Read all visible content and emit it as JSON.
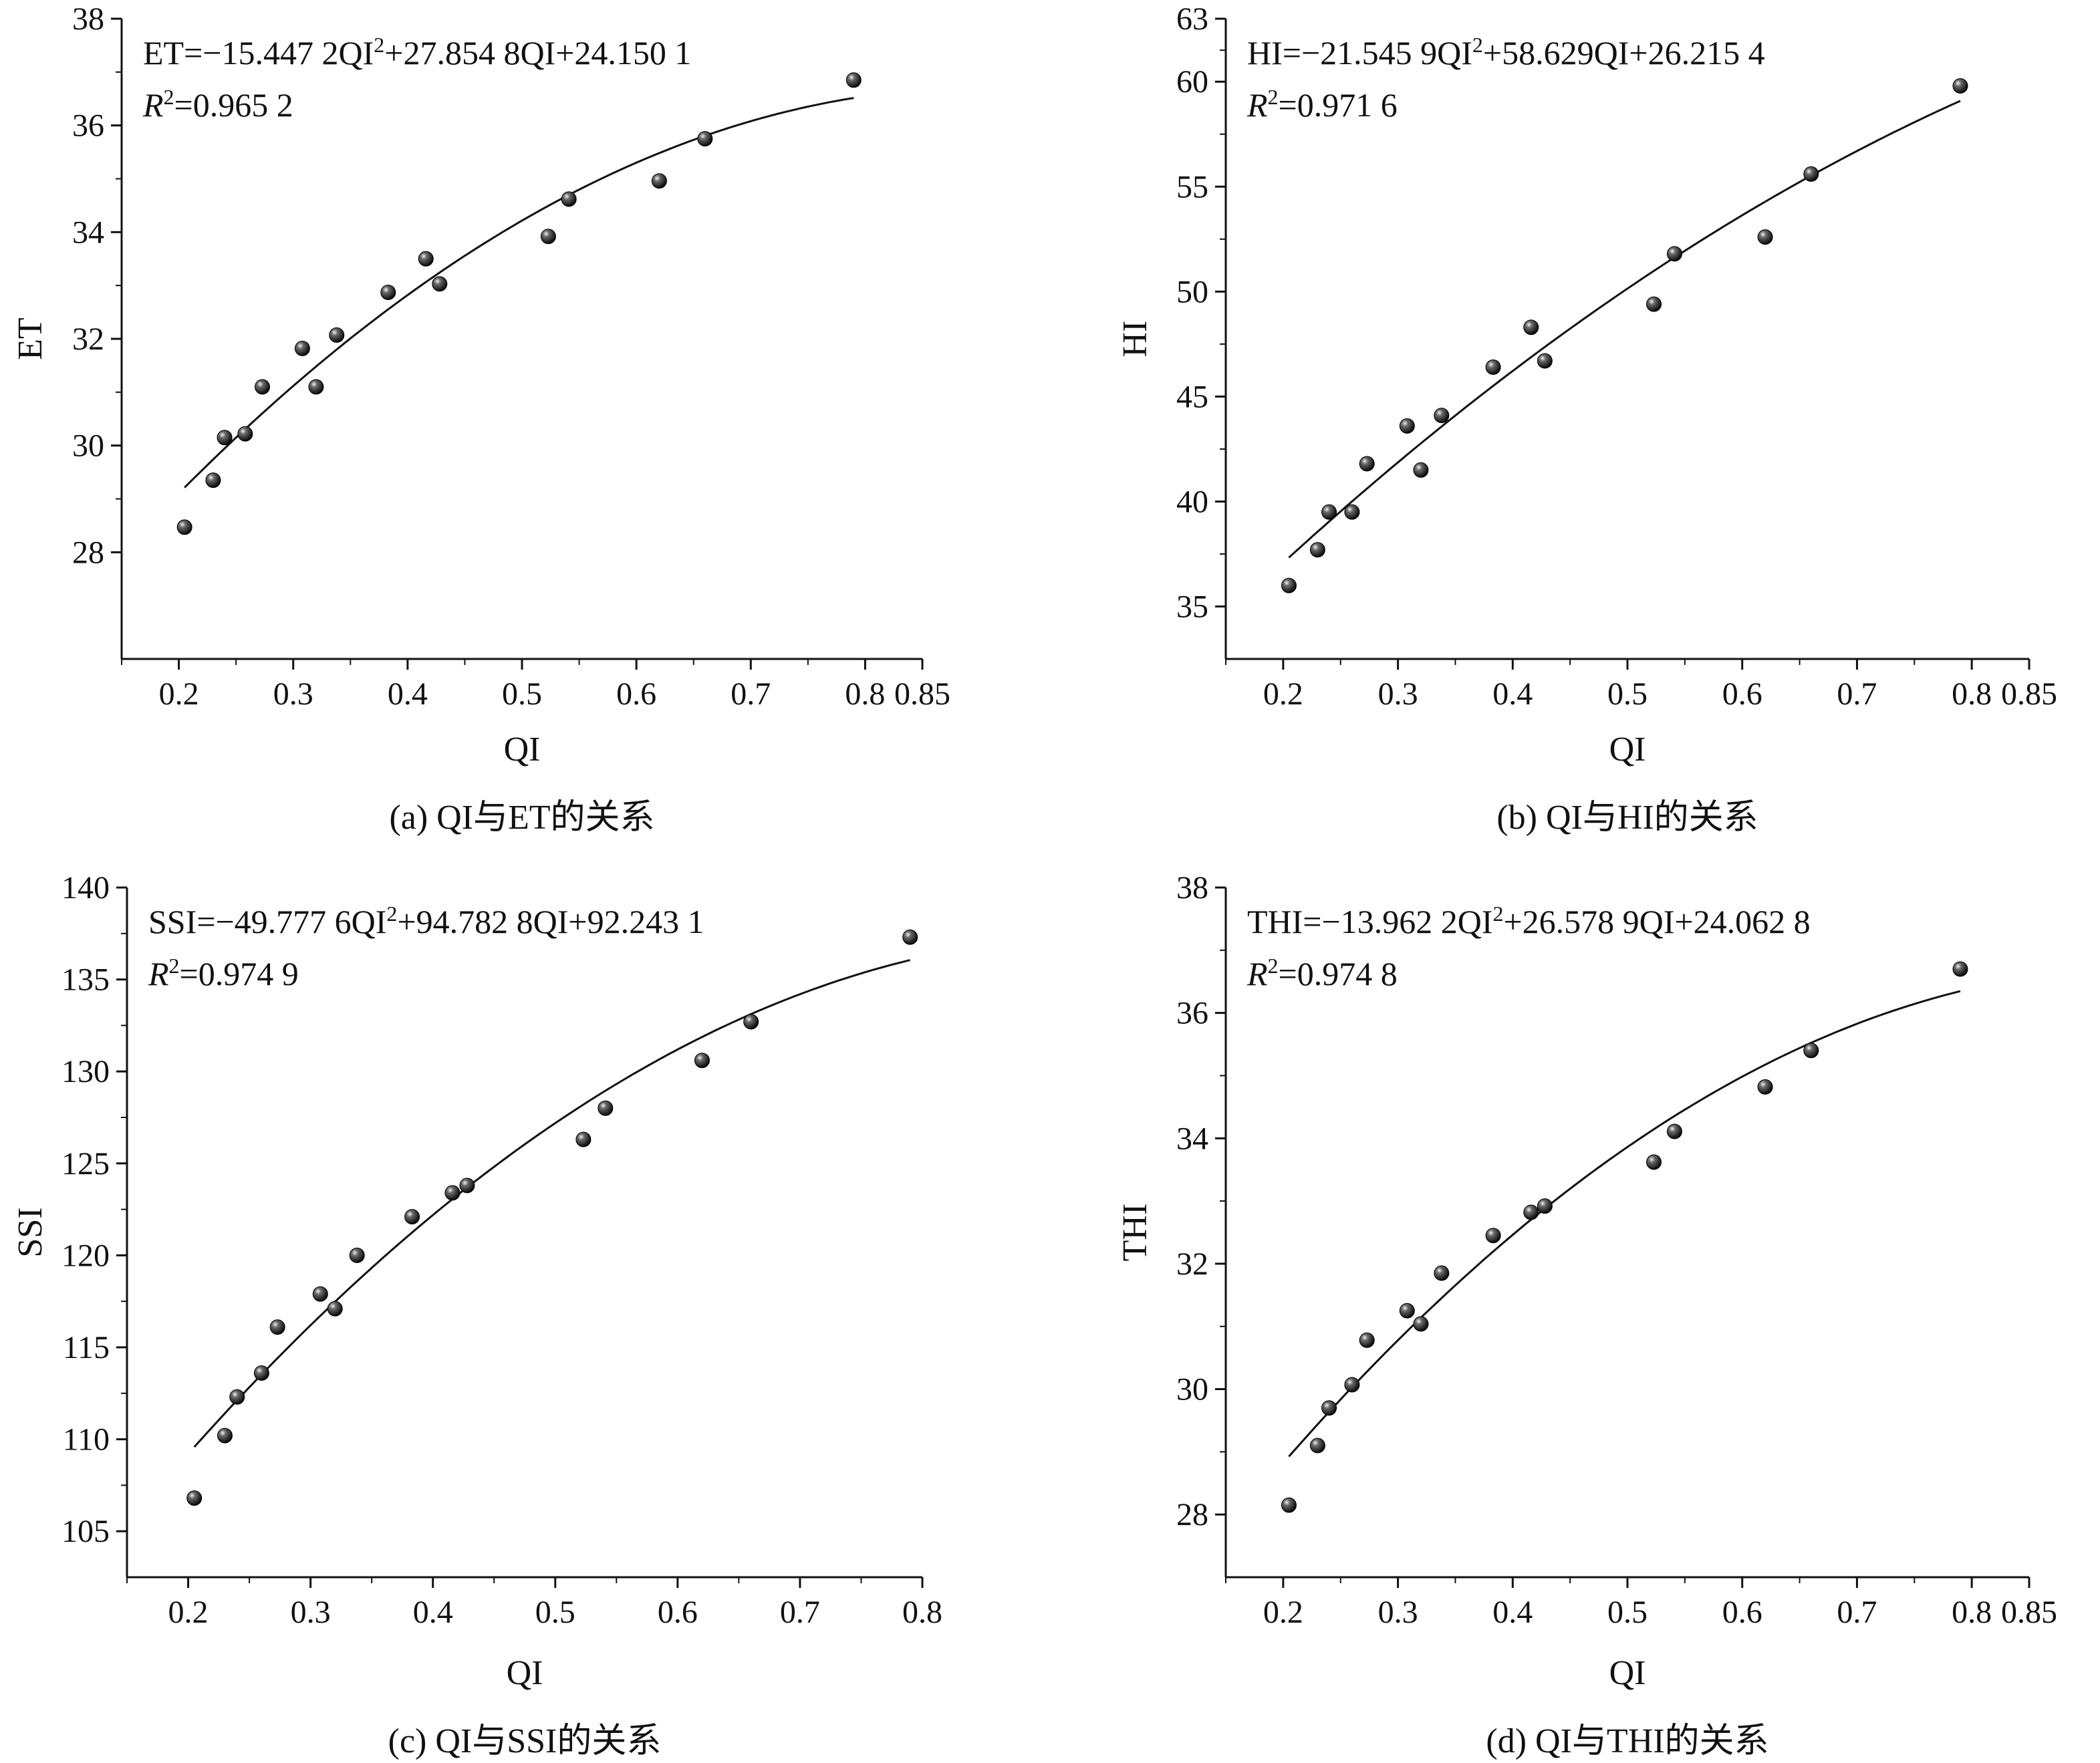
{
  "chart_data": [
    {
      "type": "scatter",
      "panel": "a",
      "caption": "(a) QI与ET的关系",
      "xlabel": "QI",
      "ylabel": "ET",
      "xlim": [
        0.15,
        0.85
      ],
      "ylim": [
        26,
        38
      ],
      "xticks": [
        "0.2",
        "0.3",
        "0.4",
        "0.5",
        "0.6",
        "0.7",
        "0.8",
        "0.85"
      ],
      "xtick_values": [
        0.2,
        0.3,
        0.4,
        0.5,
        0.6,
        0.7,
        0.8,
        0.85
      ],
      "yticks": [
        "28",
        "30",
        "32",
        "34",
        "36",
        "38"
      ],
      "ytick_values": [
        28,
        30,
        32,
        34,
        36,
        38
      ],
      "equation": "ET=−15.447 2QI²+27.854 8QI+24.150 1",
      "r2_label": "R",
      "r2_value": "=0.965 2",
      "fit": {
        "a": -15.4472,
        "b": 27.8548,
        "c": 24.1501,
        "xrange": [
          0.205,
          0.79
        ]
      },
      "points": [
        [
          0.205,
          28.47
        ],
        [
          0.23,
          29.35
        ],
        [
          0.24,
          30.15
        ],
        [
          0.258,
          30.22
        ],
        [
          0.273,
          31.1
        ],
        [
          0.308,
          31.82
        ],
        [
          0.32,
          31.1
        ],
        [
          0.338,
          32.07
        ],
        [
          0.383,
          32.87
        ],
        [
          0.416,
          33.5
        ],
        [
          0.428,
          33.03
        ],
        [
          0.523,
          33.92
        ],
        [
          0.541,
          34.62
        ],
        [
          0.62,
          34.96
        ],
        [
          0.66,
          35.75
        ],
        [
          0.79,
          36.85
        ]
      ]
    },
    {
      "type": "scatter",
      "panel": "b",
      "caption": "(b) QI与HI的关系",
      "xlabel": "QI",
      "ylabel": "HI",
      "xlim": [
        0.15,
        0.85
      ],
      "ylim": [
        32.5,
        63
      ],
      "xticks": [
        "0.2",
        "0.3",
        "0.4",
        "0.5",
        "0.6",
        "0.7",
        "0.8",
        "0.85"
      ],
      "xtick_values": [
        0.2,
        0.3,
        0.4,
        0.5,
        0.6,
        0.7,
        0.8,
        0.85
      ],
      "yticks": [
        "35",
        "40",
        "45",
        "50",
        "55",
        "60",
        "63"
      ],
      "ytick_values": [
        35,
        40,
        45,
        50,
        55,
        60,
        63
      ],
      "equation": "HI=−21.545 9QI²+58.629QI+26.215 4",
      "r2_label": "R",
      "r2_value": "=0.971 6",
      "fit": {
        "a": -21.5459,
        "b": 58.629,
        "c": 26.2154,
        "xrange": [
          0.205,
          0.79
        ]
      },
      "points": [
        [
          0.205,
          36.0
        ],
        [
          0.23,
          37.7
        ],
        [
          0.24,
          39.5
        ],
        [
          0.26,
          39.5
        ],
        [
          0.273,
          41.8
        ],
        [
          0.308,
          43.6
        ],
        [
          0.32,
          41.5
        ],
        [
          0.338,
          44.1
        ],
        [
          0.383,
          46.4
        ],
        [
          0.416,
          48.3
        ],
        [
          0.428,
          46.7
        ],
        [
          0.523,
          49.4
        ],
        [
          0.541,
          51.8
        ],
        [
          0.62,
          52.6
        ],
        [
          0.66,
          55.6
        ],
        [
          0.79,
          59.8
        ]
      ]
    },
    {
      "type": "scatter",
      "panel": "c",
      "caption": "(c) QI与SSI的关系",
      "xlabel": "QI",
      "ylabel": "SSI",
      "xlim": [
        0.15,
        0.8
      ],
      "ylim": [
        102.5,
        140
      ],
      "xticks": [
        "0.2",
        "0.3",
        "0.4",
        "0.5",
        "0.6",
        "0.7",
        "0.8"
      ],
      "xtick_values": [
        0.2,
        0.3,
        0.4,
        0.5,
        0.6,
        0.7,
        0.8
      ],
      "yticks": [
        "105",
        "110",
        "115",
        "120",
        "125",
        "130",
        "135",
        "140"
      ],
      "ytick_values": [
        105,
        110,
        115,
        120,
        125,
        130,
        135,
        140
      ],
      "equation": "SSI=−49.777 6QI²+94.782 8QI+92.243 1",
      "r2_label": "R",
      "r2_value": "=0.974 9",
      "fit": {
        "a": -49.7776,
        "b": 94.7828,
        "c": 92.2431,
        "xrange": [
          0.205,
          0.79
        ]
      },
      "points": [
        [
          0.205,
          106.8
        ],
        [
          0.23,
          110.2
        ],
        [
          0.24,
          112.3
        ],
        [
          0.26,
          113.6
        ],
        [
          0.273,
          116.1
        ],
        [
          0.308,
          117.9
        ],
        [
          0.32,
          117.1
        ],
        [
          0.338,
          120.0
        ],
        [
          0.383,
          122.1
        ],
        [
          0.416,
          123.4
        ],
        [
          0.428,
          123.8
        ],
        [
          0.523,
          126.3
        ],
        [
          0.541,
          128.0
        ],
        [
          0.62,
          130.6
        ],
        [
          0.66,
          132.7
        ],
        [
          0.79,
          137.3
        ]
      ]
    },
    {
      "type": "scatter",
      "panel": "d",
      "caption": "(d) QI与THI的关系",
      "xlabel": "QI",
      "ylabel": "THI",
      "xlim": [
        0.15,
        0.85
      ],
      "ylim": [
        27,
        38
      ],
      "xticks": [
        "0.2",
        "0.3",
        "0.4",
        "0.5",
        "0.6",
        "0.7",
        "0.8",
        "0.85"
      ],
      "xtick_values": [
        0.2,
        0.3,
        0.4,
        0.5,
        0.6,
        0.7,
        0.8,
        0.85
      ],
      "yticks": [
        "28",
        "30",
        "32",
        "34",
        "36",
        "38"
      ],
      "ytick_values": [
        28,
        30,
        32,
        34,
        36,
        38
      ],
      "equation": "THI=−13.962 2QI²+26.578 9QI+24.062 8",
      "r2_label": "R",
      "r2_value": "=0.974 8",
      "fit": {
        "a": -13.9622,
        "b": 26.5789,
        "c": 24.0628,
        "xrange": [
          0.205,
          0.79
        ]
      },
      "points": [
        [
          0.205,
          28.15
        ],
        [
          0.23,
          29.1
        ],
        [
          0.24,
          29.7
        ],
        [
          0.26,
          30.07
        ],
        [
          0.273,
          30.78
        ],
        [
          0.308,
          31.25
        ],
        [
          0.32,
          31.04
        ],
        [
          0.338,
          31.85
        ],
        [
          0.383,
          32.45
        ],
        [
          0.416,
          32.82
        ],
        [
          0.428,
          32.92
        ],
        [
          0.523,
          33.62
        ],
        [
          0.541,
          34.11
        ],
        [
          0.62,
          34.82
        ],
        [
          0.66,
          35.4
        ],
        [
          0.79,
          36.7
        ]
      ]
    }
  ],
  "colors": {
    "ink": "#111111",
    "point": "#1a1a1a",
    "background": "#ffffff"
  }
}
